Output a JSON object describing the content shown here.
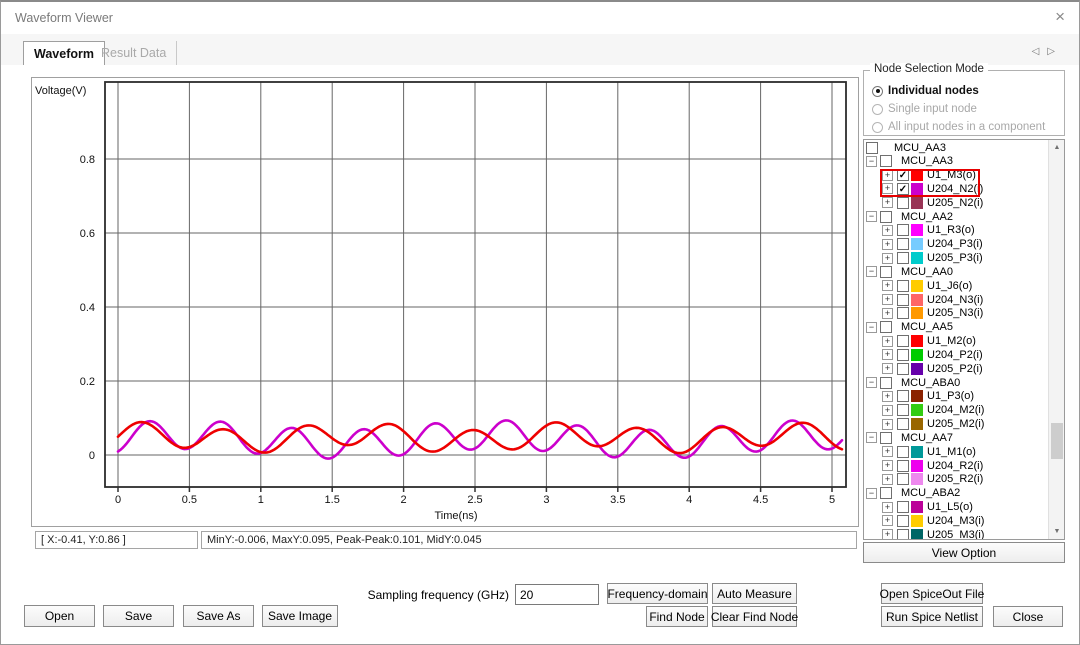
{
  "window": {
    "title": "Waveform Viewer"
  },
  "icons": {
    "close": "×",
    "check": "✓",
    "expand_plus": "+",
    "expand_minus": "−",
    "scroll_up": "▲",
    "scroll_down": "▼",
    "nav_left": "◁",
    "nav_right": "▷"
  },
  "tabs": {
    "active": "Waveform",
    "inactive": "Result Data"
  },
  "chart_data": {
    "type": "line",
    "title": "",
    "xlabel": "Time(ns)",
    "ylabel": "Voltage(V)",
    "xlim": [
      -0.09,
      5.1
    ],
    "ylim": [
      -0.086,
      1.008
    ],
    "xticks": [
      0,
      0.5,
      1,
      1.5,
      2,
      2.5,
      3,
      3.5,
      4,
      4.5,
      5
    ],
    "yticks": [
      0,
      0.2,
      0.4,
      0.6,
      0.8
    ],
    "grid": true,
    "legend_position": "none",
    "t_range": [
      0,
      5.07
    ],
    "sample_step": 0.015,
    "series": [
      {
        "name": "U204_N2(i)",
        "color": "#cc00cc",
        "mean": 0.042,
        "harmonics": [
          {
            "amp": 0.039,
            "period": 0.5,
            "phase": -1.2
          },
          {
            "amp": 0.013,
            "period": 2.2,
            "phase": 0.3
          }
        ]
      },
      {
        "name": "U1_M3(o)",
        "color": "#ee0000",
        "mean": 0.047,
        "harmonics": [
          {
            "amp": 0.031,
            "period": 0.58,
            "phase": -0.2
          },
          {
            "amp": 0.011,
            "period": 1.5,
            "phase": 0.9
          }
        ]
      }
    ],
    "measured": {
      "min_y": -0.006,
      "max_y": 0.095,
      "peak_peak": 0.101,
      "mid_y": 0.045
    }
  },
  "status": {
    "cursor": "[ X:-0.41, Y:0.86 ]",
    "measure": "MinY:-0.006, MaxY:0.095, Peak-Peak:0.101, MidY:0.045"
  },
  "node_selection": {
    "legend": "Node Selection Mode",
    "options": [
      {
        "label": "Individual nodes",
        "selected": true,
        "enabled": true
      },
      {
        "label": "Single input node",
        "selected": false,
        "enabled": false
      },
      {
        "label": "All input nodes in a component",
        "selected": false,
        "enabled": false
      }
    ]
  },
  "tree": {
    "rows": [
      {
        "type": "root",
        "label": "MCU_AA3",
        "checked": false
      },
      {
        "type": "group",
        "label": "MCU_AA3",
        "checked": false
      },
      {
        "type": "leaf",
        "label": "U1_M3(o)",
        "color": "#ff0000",
        "checked": true,
        "highlight": true
      },
      {
        "type": "leaf",
        "label": "U204_N2(i)",
        "color": "#cc00cc",
        "checked": true,
        "highlight": true
      },
      {
        "type": "leaf",
        "label": "U205_N2(i)",
        "color": "#993355",
        "checked": false
      },
      {
        "type": "group",
        "label": "MCU_AA2",
        "checked": false
      },
      {
        "type": "leaf",
        "label": "U1_R3(o)",
        "color": "#ff00ff",
        "checked": false
      },
      {
        "type": "leaf",
        "label": "U204_P3(i)",
        "color": "#77ccff",
        "checked": false
      },
      {
        "type": "leaf",
        "label": "U205_P3(i)",
        "color": "#00cccc",
        "checked": false
      },
      {
        "type": "group",
        "label": "MCU_AA0",
        "checked": false
      },
      {
        "type": "leaf",
        "label": "U1_J6(o)",
        "color": "#ffcc00",
        "checked": false
      },
      {
        "type": "leaf",
        "label": "U204_N3(i)",
        "color": "#ff6666",
        "checked": false
      },
      {
        "type": "leaf",
        "label": "U205_N3(i)",
        "color": "#ff9900",
        "checked": false
      },
      {
        "type": "group",
        "label": "MCU_AA5",
        "checked": false
      },
      {
        "type": "leaf",
        "label": "U1_M2(o)",
        "color": "#ff0000",
        "checked": false
      },
      {
        "type": "leaf",
        "label": "U204_P2(i)",
        "color": "#00cc00",
        "checked": false
      },
      {
        "type": "leaf",
        "label": "U205_P2(i)",
        "color": "#6600aa",
        "checked": false
      },
      {
        "type": "group",
        "label": "MCU_ABA0",
        "checked": false
      },
      {
        "type": "leaf",
        "label": "U1_P3(o)",
        "color": "#8b2200",
        "checked": false
      },
      {
        "type": "leaf",
        "label": "U204_M2(i)",
        "color": "#33cc11",
        "checked": false
      },
      {
        "type": "leaf",
        "label": "U205_M2(i)",
        "color": "#996600",
        "checked": false
      },
      {
        "type": "group",
        "label": "MCU_AA7",
        "checked": false
      },
      {
        "type": "leaf",
        "label": "U1_M1(o)",
        "color": "#009999",
        "checked": false
      },
      {
        "type": "leaf",
        "label": "U204_R2(i)",
        "color": "#ee00ee",
        "checked": false
      },
      {
        "type": "leaf",
        "label": "U205_R2(i)",
        "color": "#ee88ee",
        "checked": false
      },
      {
        "type": "group",
        "label": "MCU_ABA2",
        "checked": false
      },
      {
        "type": "leaf",
        "label": "U1_L5(o)",
        "color": "#bb0099",
        "checked": false
      },
      {
        "type": "leaf",
        "label": "U204_M3(i)",
        "color": "#ffcc00",
        "checked": false
      },
      {
        "type": "leaf",
        "label": "U205_M3(i)",
        "color": "#006666",
        "checked": false
      }
    ]
  },
  "buttons": {
    "view_option": "View Option",
    "open": "Open",
    "save": "Save",
    "save_as": "Save As",
    "save_image": "Save Image",
    "frequency_domain": "Frequency-domain",
    "auto_measure": "Auto Measure",
    "find_node": "Find Node",
    "clear_find_node": "Clear Find Node",
    "open_spiceout": "Open SpiceOut File",
    "run_spice": "Run Spice Netlist",
    "close": "Close"
  },
  "sampling": {
    "label": "Sampling frequency (GHz)",
    "value": "20"
  }
}
